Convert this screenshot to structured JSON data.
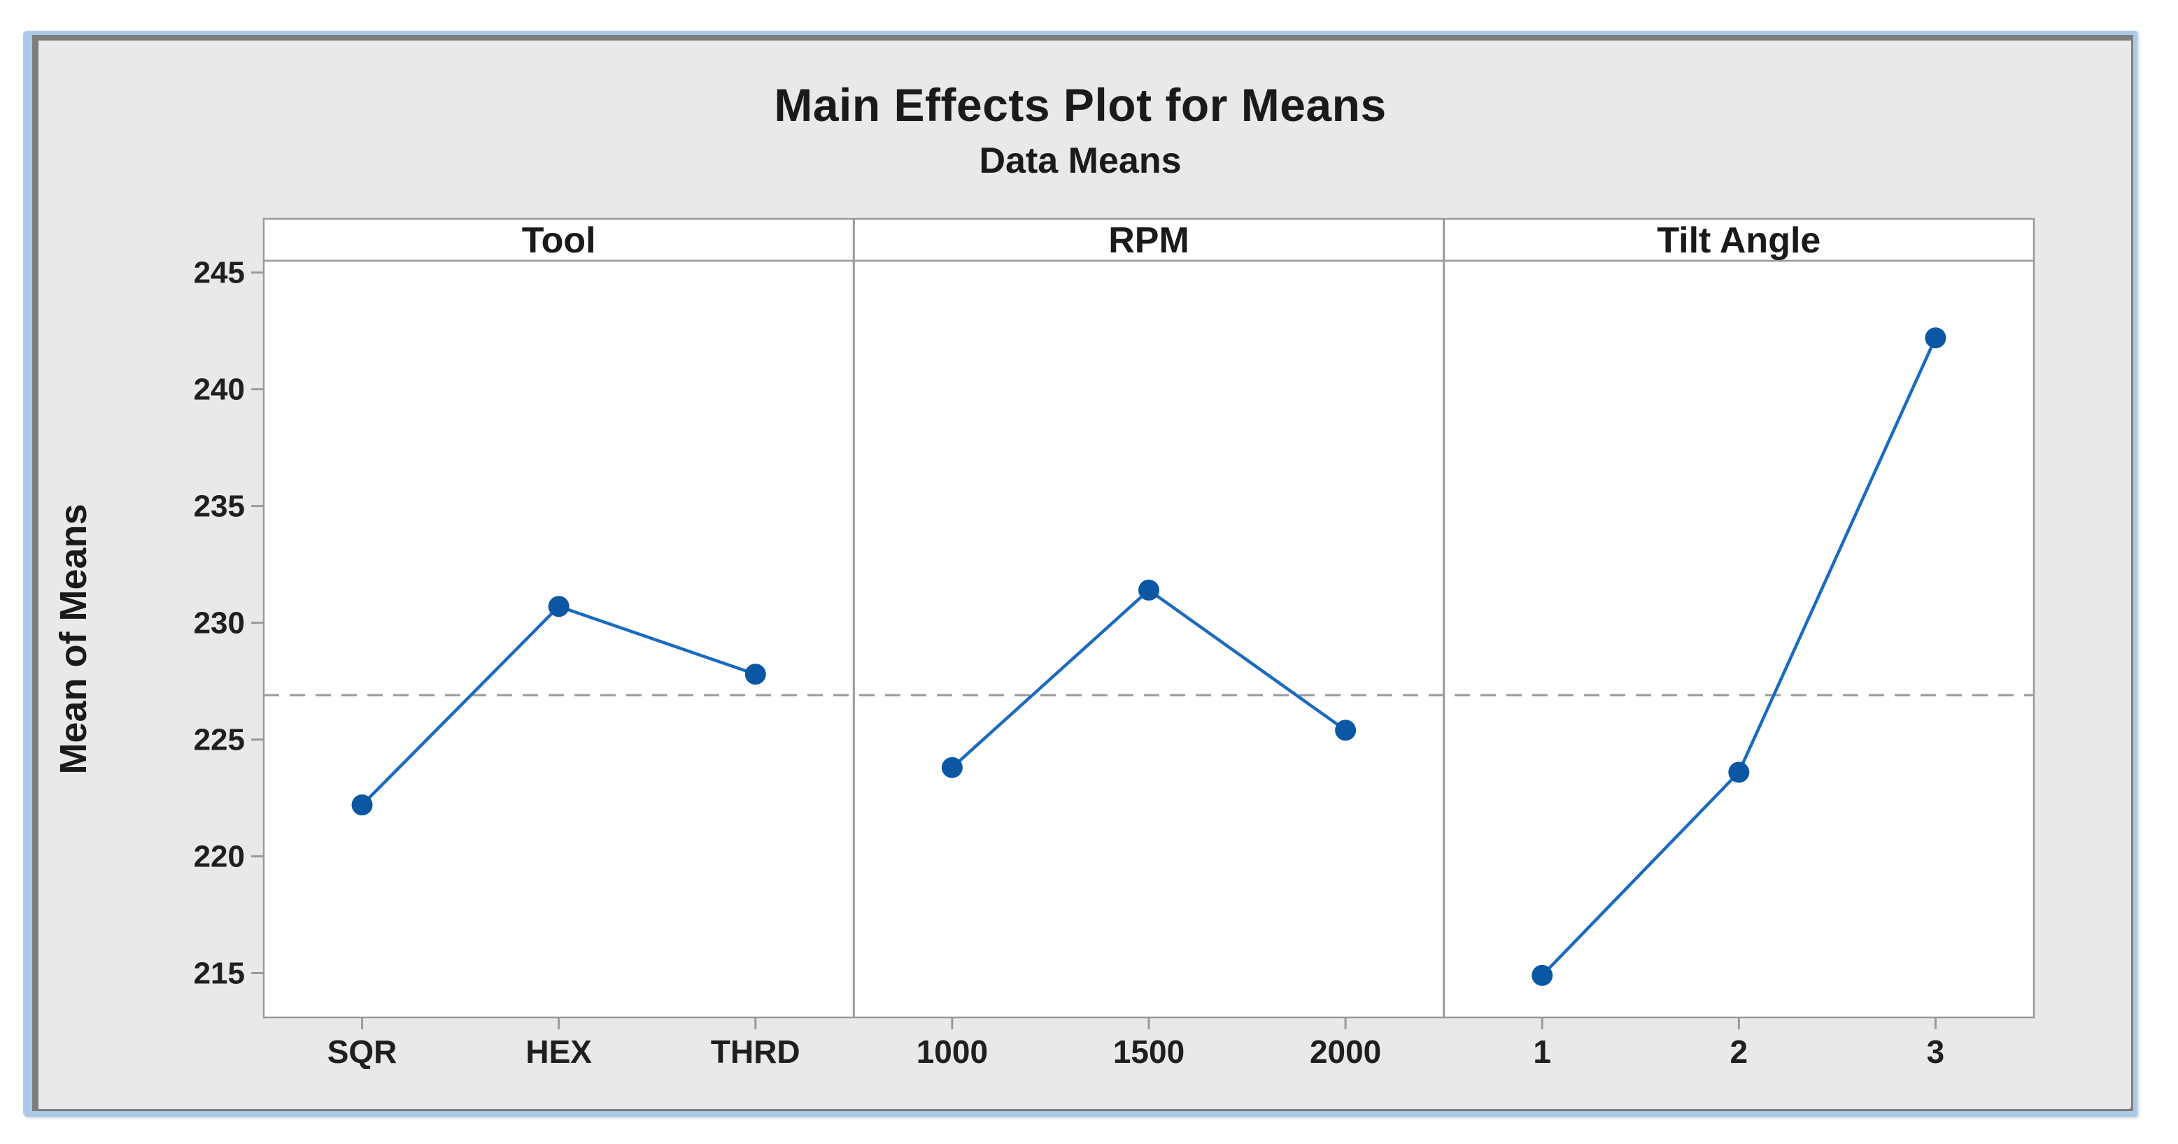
{
  "window": {
    "frame_accent_color": "#aac9e9",
    "frame_inner_color": "#7e7e7e",
    "graph_background": "#e9e9e9"
  },
  "chart_data": {
    "type": "line",
    "title": "Main Effects Plot for Means",
    "subtitle": "Data Means",
    "ylabel": "Mean of Means",
    "ylim": [
      213.1,
      245.5
    ],
    "yticks": [
      215,
      220,
      225,
      230,
      235,
      240,
      245
    ],
    "reference_line_value": 226.9,
    "grid": false,
    "legend_position": "none",
    "panels": [
      {
        "header": "Tool",
        "categories": [
          "SQR",
          "HEX",
          "THRD"
        ],
        "values": [
          222.2,
          230.7,
          227.8
        ]
      },
      {
        "header": "RPM",
        "categories": [
          "1000",
          "1500",
          "2000"
        ],
        "values": [
          223.8,
          231.4,
          225.4
        ]
      },
      {
        "header": "Tilt Angle",
        "categories": [
          "1",
          "2",
          "3"
        ],
        "values": [
          214.9,
          223.6,
          242.2
        ]
      }
    ],
    "colors": {
      "series_line": "#1a6bbf",
      "marker": "#0c57a4",
      "reference_line": "#999999",
      "panel_border": "#9a9a9a",
      "panel_fill": "#ffffff",
      "tick_label": "#1f1f1f",
      "title_text": "#1a1a1a"
    }
  }
}
